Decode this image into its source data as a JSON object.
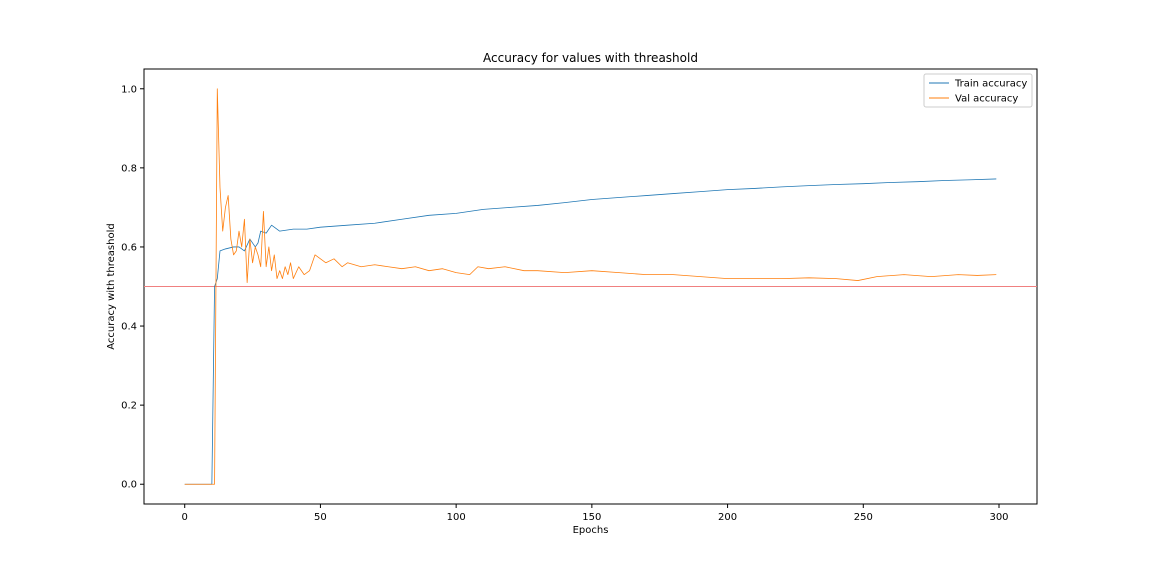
{
  "chart_data": {
    "type": "line",
    "title": "Accuracy for values with threashold",
    "xlabel": "Epochs",
    "ylabel": "Accuracy with threashold",
    "xlim": [
      -15,
      314
    ],
    "ylim": [
      -0.05,
      1.05
    ],
    "xticks": [
      0,
      50,
      100,
      150,
      200,
      250,
      300
    ],
    "yticks": [
      0.0,
      0.2,
      0.4,
      0.6,
      0.8,
      1.0
    ],
    "grid": false,
    "legend_position": "top-right",
    "threshold": {
      "y": 0.5,
      "color": "#f08080"
    },
    "series": [
      {
        "name": "Train accuracy",
        "color": "#1f77b4",
        "points": [
          [
            0,
            0
          ],
          [
            10,
            0
          ],
          [
            11,
            0.5
          ],
          [
            12,
            0.52
          ],
          [
            13,
            0.59
          ],
          [
            15,
            0.595
          ],
          [
            18,
            0.6
          ],
          [
            20,
            0.6
          ],
          [
            22,
            0.59
          ],
          [
            24,
            0.62
          ],
          [
            26,
            0.6
          ],
          [
            27,
            0.61
          ],
          [
            28,
            0.64
          ],
          [
            30,
            0.635
          ],
          [
            32,
            0.655
          ],
          [
            35,
            0.64
          ],
          [
            40,
            0.645
          ],
          [
            45,
            0.645
          ],
          [
            50,
            0.65
          ],
          [
            60,
            0.655
          ],
          [
            70,
            0.66
          ],
          [
            80,
            0.67
          ],
          [
            90,
            0.68
          ],
          [
            100,
            0.685
          ],
          [
            110,
            0.695
          ],
          [
            120,
            0.7
          ],
          [
            130,
            0.705
          ],
          [
            140,
            0.712
          ],
          [
            150,
            0.72
          ],
          [
            160,
            0.725
          ],
          [
            170,
            0.73
          ],
          [
            180,
            0.735
          ],
          [
            190,
            0.74
          ],
          [
            200,
            0.745
          ],
          [
            210,
            0.748
          ],
          [
            220,
            0.752
          ],
          [
            230,
            0.755
          ],
          [
            240,
            0.758
          ],
          [
            250,
            0.76
          ],
          [
            260,
            0.763
          ],
          [
            270,
            0.765
          ],
          [
            280,
            0.768
          ],
          [
            290,
            0.77
          ],
          [
            299,
            0.772
          ]
        ]
      },
      {
        "name": "Val accuracy",
        "color": "#ff7f0e",
        "points": [
          [
            0,
            0
          ],
          [
            11,
            0
          ],
          [
            12,
            1.0
          ],
          [
            13,
            0.75
          ],
          [
            14,
            0.64
          ],
          [
            15,
            0.7
          ],
          [
            16,
            0.73
          ],
          [
            17,
            0.62
          ],
          [
            18,
            0.58
          ],
          [
            19,
            0.59
          ],
          [
            20,
            0.64
          ],
          [
            21,
            0.6
          ],
          [
            22,
            0.67
          ],
          [
            23,
            0.51
          ],
          [
            24,
            0.62
          ],
          [
            25,
            0.56
          ],
          [
            26,
            0.6
          ],
          [
            27,
            0.58
          ],
          [
            28,
            0.55
          ],
          [
            29,
            0.69
          ],
          [
            30,
            0.55
          ],
          [
            31,
            0.6
          ],
          [
            32,
            0.54
          ],
          [
            33,
            0.58
          ],
          [
            34,
            0.52
          ],
          [
            35,
            0.54
          ],
          [
            36,
            0.52
          ],
          [
            37,
            0.55
          ],
          [
            38,
            0.53
          ],
          [
            39,
            0.56
          ],
          [
            40,
            0.52
          ],
          [
            42,
            0.55
          ],
          [
            44,
            0.53
          ],
          [
            46,
            0.54
          ],
          [
            48,
            0.58
          ],
          [
            50,
            0.57
          ],
          [
            52,
            0.56
          ],
          [
            55,
            0.57
          ],
          [
            58,
            0.55
          ],
          [
            60,
            0.56
          ],
          [
            65,
            0.55
          ],
          [
            70,
            0.555
          ],
          [
            75,
            0.55
          ],
          [
            80,
            0.545
          ],
          [
            85,
            0.55
          ],
          [
            90,
            0.54
          ],
          [
            95,
            0.545
          ],
          [
            100,
            0.535
          ],
          [
            105,
            0.53
          ],
          [
            108,
            0.55
          ],
          [
            112,
            0.545
          ],
          [
            118,
            0.55
          ],
          [
            125,
            0.54
          ],
          [
            130,
            0.54
          ],
          [
            140,
            0.535
          ],
          [
            150,
            0.54
          ],
          [
            160,
            0.535
          ],
          [
            170,
            0.53
          ],
          [
            180,
            0.53
          ],
          [
            190,
            0.525
          ],
          [
            200,
            0.52
          ],
          [
            210,
            0.52
          ],
          [
            220,
            0.52
          ],
          [
            230,
            0.522
          ],
          [
            240,
            0.52
          ],
          [
            248,
            0.515
          ],
          [
            255,
            0.525
          ],
          [
            265,
            0.53
          ],
          [
            275,
            0.525
          ],
          [
            285,
            0.53
          ],
          [
            292,
            0.528
          ],
          [
            299,
            0.53
          ]
        ]
      }
    ]
  }
}
